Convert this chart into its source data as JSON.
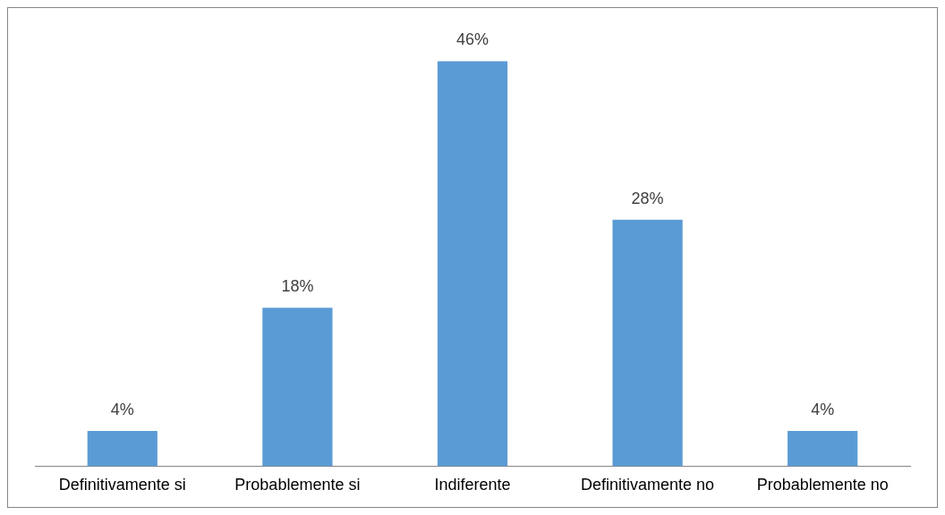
{
  "chart_data": {
    "type": "bar",
    "categories": [
      "Definitivamente si",
      "Probablemente si",
      "Indiferente",
      "Definitivamente no",
      "Probablemente no"
    ],
    "values": [
      4,
      18,
      46,
      28,
      4
    ],
    "value_labels": [
      "4%",
      "18%",
      "46%",
      "28%",
      "4%"
    ],
    "color": "#5b9bd5",
    "grid": false,
    "legend": false,
    "tick_labels": "x"
  }
}
